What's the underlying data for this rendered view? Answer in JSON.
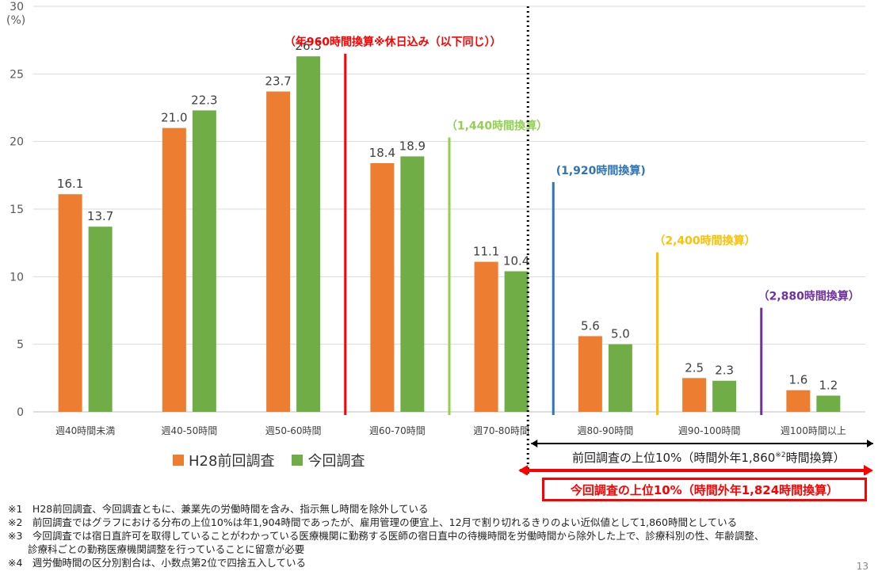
{
  "chart_data": {
    "type": "bar",
    "categories": [
      "週40時間未満",
      "週40-50時間",
      "週50-60時間",
      "週60-70時間",
      "週70-80時間",
      "週80-90時間",
      "週90-100時間",
      "週100時間以上"
    ],
    "series": [
      {
        "name": "H28前回調査",
        "values": [
          16.1,
          21.0,
          23.7,
          18.4,
          11.1,
          5.6,
          2.5,
          1.6
        ],
        "color": "#ed7d31"
      },
      {
        "name": "今回調査",
        "values": [
          13.7,
          22.3,
          26.3,
          18.9,
          10.4,
          5.0,
          2.3,
          1.2
        ],
        "color": "#70ad47"
      }
    ],
    "ylabel": "(%)",
    "ylim": [
      0,
      30
    ],
    "yticks": [
      0,
      5,
      10,
      15,
      20,
      25,
      30
    ],
    "grid": true,
    "legend": "bottom-left",
    "annotations": [
      {
        "text": "（年960時間換算※休日込み（以下同じ））",
        "color": "#ff0000",
        "after_category": 2
      },
      {
        "text": "（1,440時間換算）",
        "color": "#92d050",
        "after_category": 3
      },
      {
        "text": "(1,920時間換算)",
        "color": "#2e75b6",
        "after_category": 4
      },
      {
        "text": "（2,400時間換算）",
        "color": "#ffc000",
        "after_category": 5
      },
      {
        "text": "（2,880時間換算）",
        "color": "#7030a0",
        "after_category": 6
      }
    ]
  },
  "ranges": {
    "prev_top10": "前回調査の上位10%（時間外年1,860",
    "prev_top10_sup": "※2",
    "prev_top10_tail": "時間換算）",
    "curr_top10": "今回調査の上位10%（時間外年1,824時間換算）"
  },
  "footnotes": [
    "※1　H28前回調査、今回調査ともに、兼業先の労働時間を含み、指示無し時間を除外している",
    "※2　前回調査ではグラフにおける分布の上位10%は年1,904時間であったが、雇用管理の便宜上、12月で割り切れるきりのよい近似値として1,860時間としている",
    "※3　今回調査では宿日直許可を取得していることがわかっている医療機関に勤務する医師の宿日直中の待機時間を労働時間から除外した上で、診療科別の性、年齢調整、",
    "　　診療科ごとの勤務医療機関調整を行っていることに留意が必要",
    "※4　週労働時間の区分別割合は、小数点第2位で四捨五入している"
  ],
  "page_number": "13"
}
